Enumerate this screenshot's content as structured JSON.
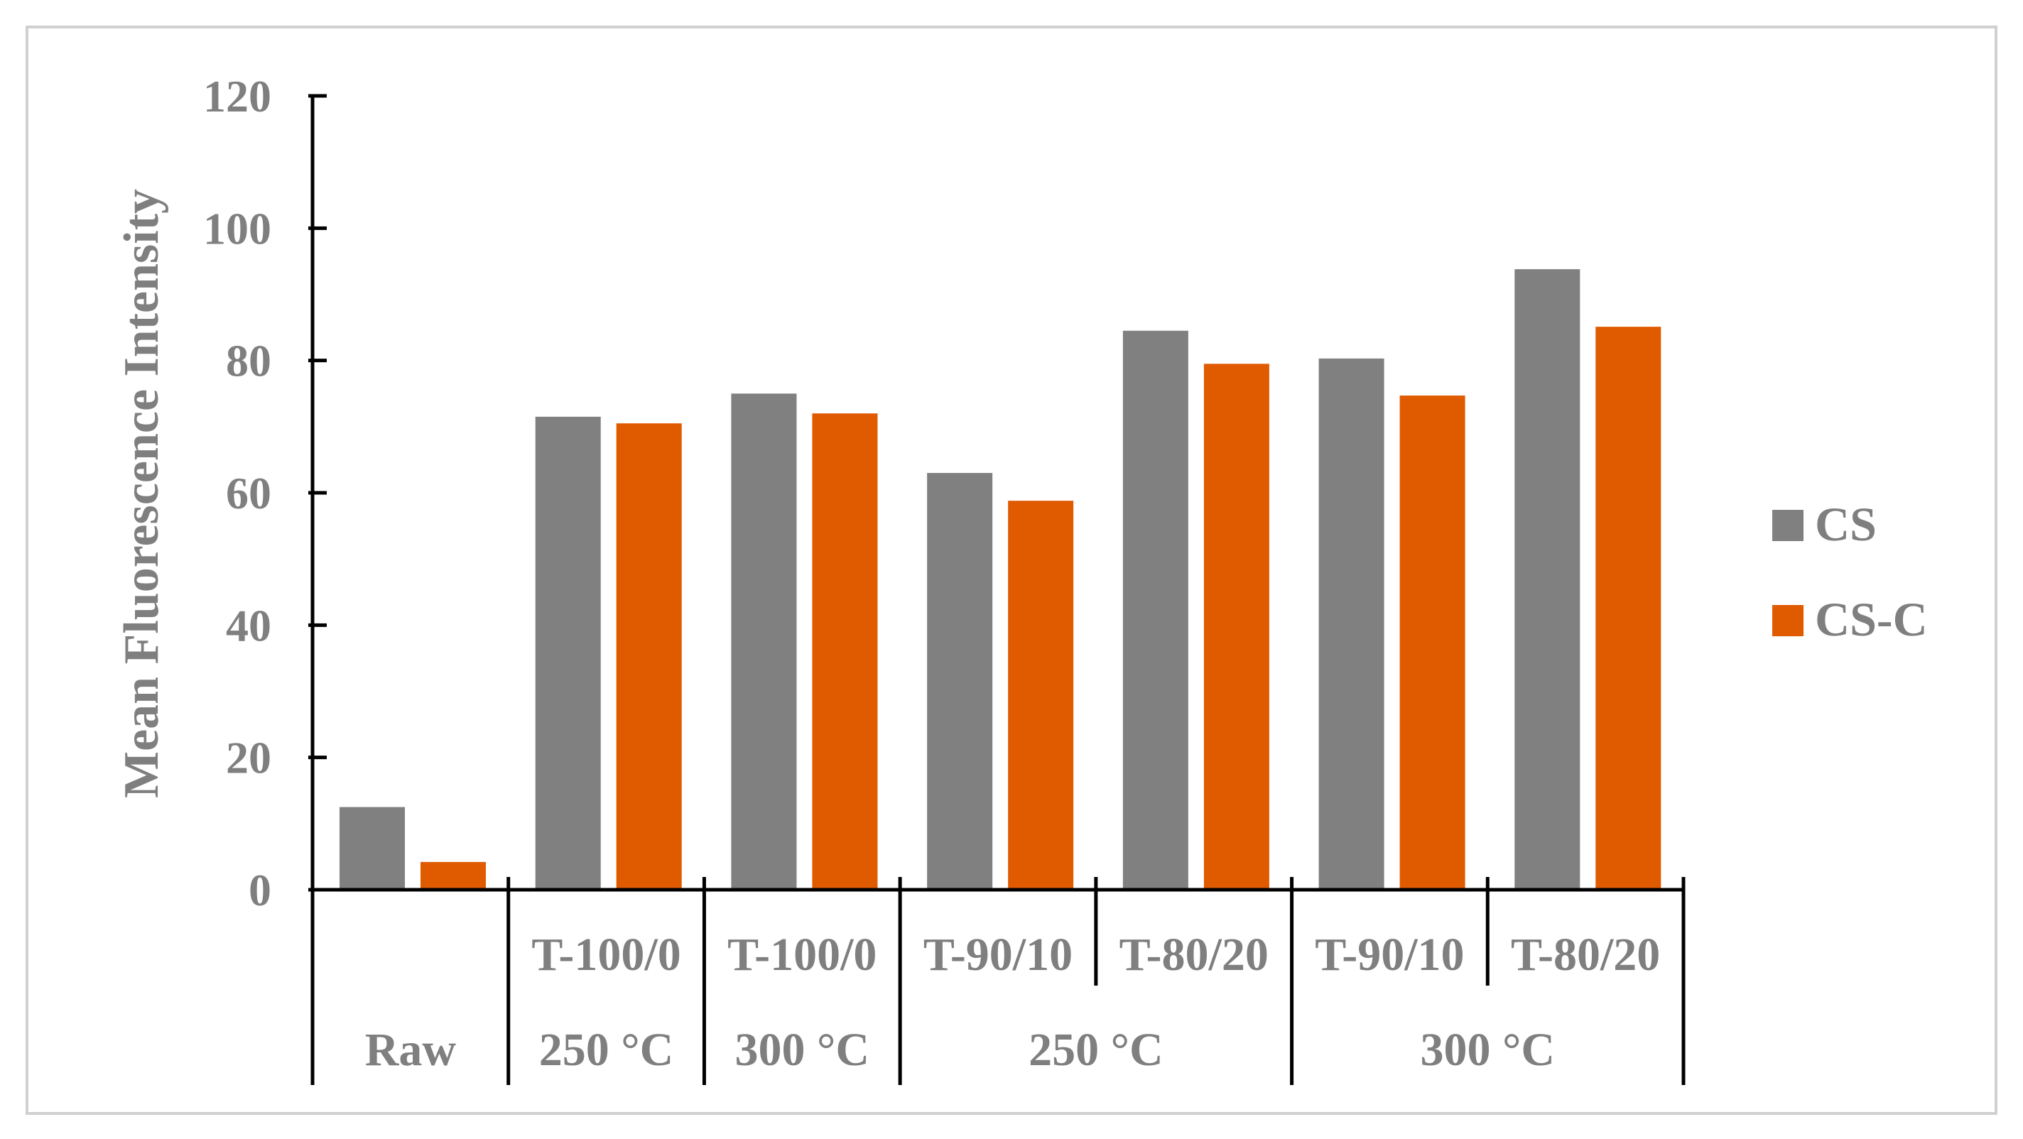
{
  "chart_data": {
    "type": "bar",
    "title": "",
    "ylabel": "Mean Fluorescence Intensity",
    "ylim": [
      0,
      120
    ],
    "yticks": [
      0,
      20,
      40,
      60,
      80,
      100,
      120
    ],
    "grid": false,
    "legend_position": "right",
    "categories": [
      "Raw",
      "T-100/0",
      "T-100/0",
      "T-90/10",
      "T-80/20",
      "T-90/10",
      "T-80/20"
    ],
    "category_groups": [
      {
        "label": "Raw",
        "span": 1
      },
      {
        "label": "250 °C",
        "span": 1
      },
      {
        "label": "300 °C",
        "span": 1
      },
      {
        "label": "250 °C",
        "span": 2
      },
      {
        "label": "300 °C",
        "span": 2
      }
    ],
    "series": [
      {
        "name": "CS",
        "color": "#808080",
        "values": [
          12.5,
          71.5,
          75,
          63,
          84.5,
          80.3,
          93.8
        ]
      },
      {
        "name": "CS-C",
        "color": "#e05a00",
        "values": [
          4.2,
          70.5,
          72,
          58.8,
          79.5,
          74.7,
          85.1
        ]
      }
    ]
  }
}
